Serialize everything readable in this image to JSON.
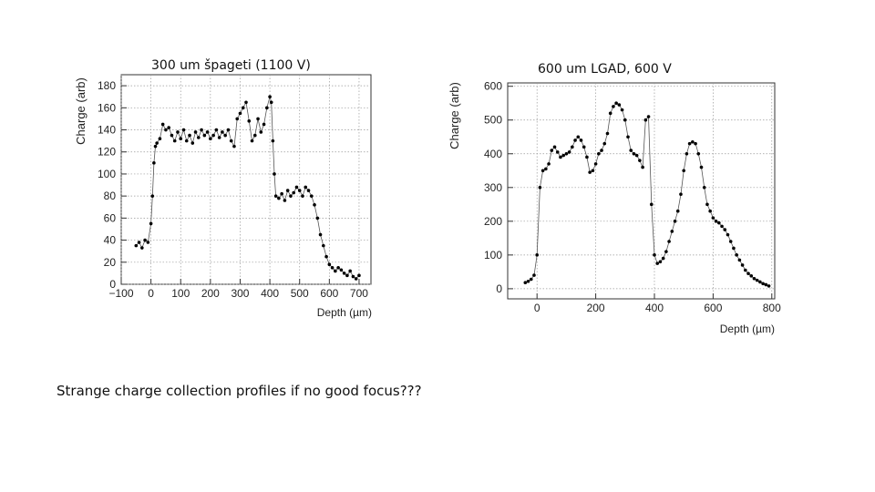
{
  "captions": {
    "left_title": "300 um špageti (1100 V)",
    "right_title": "600 um LGAD, 600 V",
    "bottom_note": "Strange charge collection profiles if no good focus???"
  },
  "chart_data": [
    {
      "type": "scatter",
      "title": "300 um špageti (1100 V)",
      "xlabel": "Depth (µm)",
      "ylabel": "Charge (arb)",
      "xlim": [
        -100,
        740
      ],
      "ylim": [
        0,
        190
      ],
      "xticks": [
        -100,
        0,
        100,
        200,
        300,
        400,
        500,
        600,
        700
      ],
      "xtick_labels": [
        "−100",
        "0",
        "100",
        "200",
        "300",
        "400",
        "500",
        "600",
        "700"
      ],
      "yticks": [
        0,
        20,
        40,
        60,
        80,
        100,
        120,
        140,
        160,
        180
      ],
      "grid": "dotted",
      "x": [
        -50,
        -40,
        -30,
        -20,
        -10,
        0,
        5,
        10,
        15,
        20,
        30,
        40,
        50,
        60,
        70,
        80,
        90,
        100,
        110,
        120,
        130,
        140,
        150,
        160,
        170,
        180,
        190,
        200,
        210,
        220,
        230,
        240,
        250,
        260,
        270,
        280,
        290,
        300,
        310,
        320,
        330,
        340,
        350,
        360,
        370,
        380,
        390,
        400,
        405,
        410,
        415,
        420,
        430,
        440,
        450,
        460,
        470,
        480,
        490,
        500,
        510,
        520,
        530,
        540,
        550,
        560,
        570,
        580,
        590,
        600,
        610,
        620,
        630,
        640,
        650,
        660,
        670,
        680,
        690,
        700
      ],
      "values": [
        35,
        38,
        33,
        40,
        38,
        55,
        80,
        110,
        125,
        128,
        132,
        145,
        140,
        142,
        135,
        130,
        138,
        132,
        140,
        130,
        135,
        128,
        138,
        133,
        140,
        135,
        138,
        132,
        135,
        140,
        133,
        138,
        135,
        140,
        130,
        125,
        150,
        155,
        160,
        165,
        148,
        130,
        135,
        150,
        138,
        145,
        160,
        170,
        165,
        130,
        100,
        80,
        78,
        82,
        76,
        85,
        80,
        83,
        88,
        85,
        80,
        88,
        85,
        80,
        72,
        60,
        45,
        35,
        25,
        18,
        15,
        12,
        15,
        13,
        10,
        8,
        12,
        7,
        5,
        8
      ]
    },
    {
      "type": "scatter",
      "title": "600 um LGAD, 600 V",
      "xlabel": "Depth (µm)",
      "ylabel": "Charge (arb)",
      "xlim": [
        -100,
        810
      ],
      "ylim": [
        -30,
        610
      ],
      "xticks": [
        0,
        200,
        400,
        600,
        800
      ],
      "yticks": [
        0,
        100,
        200,
        300,
        400,
        500,
        600
      ],
      "grid": "dotted",
      "x": [
        -40,
        -30,
        -20,
        -10,
        0,
        10,
        20,
        30,
        40,
        50,
        60,
        70,
        80,
        90,
        100,
        110,
        120,
        130,
        140,
        150,
        160,
        170,
        180,
        190,
        200,
        210,
        220,
        230,
        240,
        250,
        260,
        270,
        280,
        290,
        300,
        310,
        320,
        330,
        340,
        350,
        360,
        370,
        380,
        390,
        400,
        410,
        420,
        430,
        440,
        450,
        460,
        470,
        480,
        490,
        500,
        510,
        520,
        530,
        540,
        550,
        560,
        570,
        580,
        590,
        600,
        610,
        620,
        630,
        640,
        650,
        660,
        670,
        680,
        690,
        700,
        710,
        720,
        730,
        740,
        750,
        760,
        770,
        780,
        790
      ],
      "values": [
        18,
        22,
        28,
        40,
        100,
        300,
        350,
        355,
        370,
        410,
        420,
        405,
        390,
        395,
        400,
        405,
        420,
        440,
        450,
        440,
        420,
        390,
        345,
        350,
        370,
        400,
        410,
        430,
        460,
        520,
        540,
        550,
        545,
        530,
        500,
        450,
        410,
        400,
        395,
        380,
        360,
        500,
        510,
        250,
        100,
        75,
        80,
        90,
        110,
        140,
        170,
        200,
        230,
        280,
        350,
        400,
        430,
        435,
        430,
        400,
        360,
        300,
        250,
        230,
        210,
        200,
        195,
        185,
        175,
        160,
        140,
        120,
        100,
        85,
        70,
        55,
        45,
        38,
        30,
        25,
        20,
        15,
        12,
        8
      ]
    }
  ]
}
